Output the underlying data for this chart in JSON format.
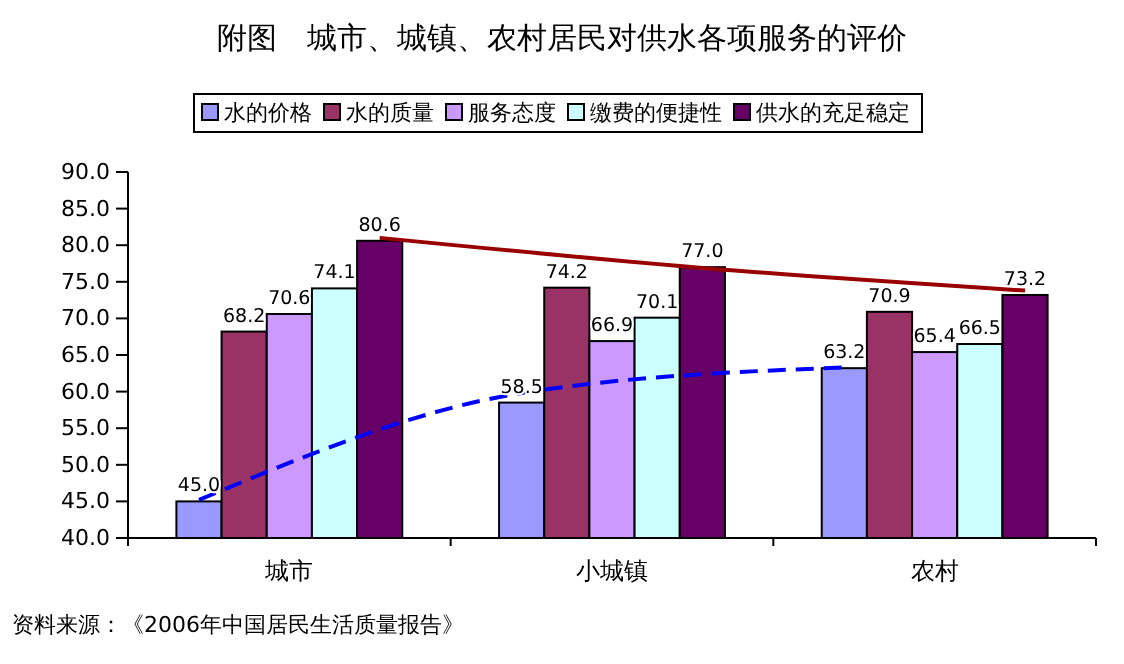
{
  "chart_data": {
    "type": "bar",
    "title": "附图　城市、城镇、农村居民对供水各项服务的评价",
    "categories": [
      "城市",
      "小城镇",
      "农村"
    ],
    "series": [
      {
        "name": "水的价格",
        "color": "#9999ff",
        "values": [
          45.0,
          58.5,
          63.2
        ],
        "value_labels": [
          "45.0",
          "58.5",
          "63.2"
        ]
      },
      {
        "name": "水的质量",
        "color": "#993366",
        "values": [
          68.2,
          74.2,
          70.9
        ],
        "value_labels": [
          "68.2",
          "74.2",
          "70.9"
        ]
      },
      {
        "name": "服务态度",
        "color": "#cc99ff",
        "values": [
          70.6,
          66.9,
          65.4
        ],
        "value_labels": [
          "70.6",
          "66.9",
          "65.4"
        ]
      },
      {
        "name": "缴费的便捷性",
        "color": "#ccffff",
        "values": [
          74.1,
          70.1,
          66.5
        ],
        "value_labels": [
          "74.1",
          "70.1",
          "66.5"
        ]
      },
      {
        "name": "供水的充足稳定",
        "color": "#660066",
        "values": [
          80.6,
          77.0,
          73.2
        ],
        "value_labels": [
          "80.6",
          "77.0",
          "73.2"
        ]
      },
      {
        "type": "line",
        "color": "#0000ff",
        "line_style": "dashed",
        "values": [
          45.2,
          59.8,
          63.3
        ]
      },
      {
        "type": "line",
        "color": "#990000",
        "line_style": "solid",
        "values": [
          81.0,
          76.9,
          73.8
        ]
      }
    ],
    "ylim": [
      40,
      90
    ],
    "yticks": [
      {
        "value": 40,
        "label": "40.0"
      },
      {
        "value": 45,
        "label": "45.0"
      },
      {
        "value": 50,
        "label": "50.0"
      },
      {
        "value": 55,
        "label": "55.0"
      },
      {
        "value": 60,
        "label": "60.0"
      },
      {
        "value": 65,
        "label": "65.0"
      },
      {
        "value": 70,
        "label": "70.0"
      },
      {
        "value": 75,
        "label": "75.0"
      },
      {
        "value": 80,
        "label": "80.0"
      },
      {
        "value": 85,
        "label": "85.0"
      },
      {
        "value": 90,
        "label": "90.0"
      }
    ],
    "grid": false,
    "legend": "top",
    "marker": "none",
    "annotations": [
      "资料来源：《2006年中国居民生活质量报告》"
    ]
  }
}
